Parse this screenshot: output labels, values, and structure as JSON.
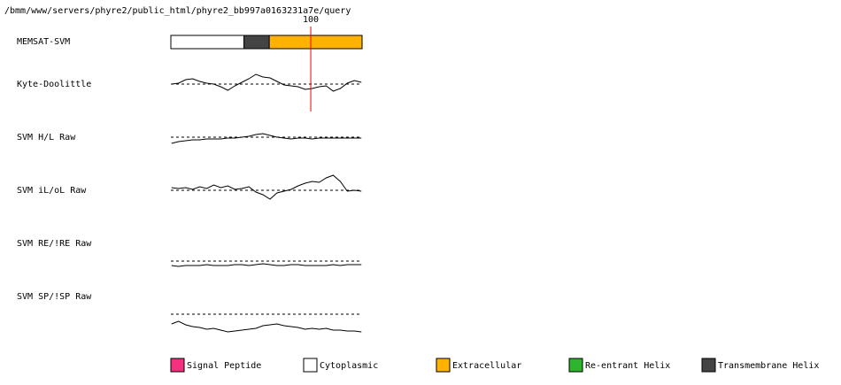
{
  "header": {
    "path": "/bmm/www/servers/phyre2/public_html/phyre2_bb997a0163231a7e/query"
  },
  "sequence": {
    "length": 136,
    "marker": 100
  },
  "memsat": {
    "label": "MEMSAT-SVM",
    "segments": [
      {
        "start": 1,
        "end": 52,
        "color": "#ffffff"
      },
      {
        "start": 53,
        "end": 70,
        "color": "#444444"
      },
      {
        "start": 71,
        "end": 136,
        "color": "#ffb300"
      }
    ]
  },
  "positions": [
    1,
    6,
    11,
    16,
    21,
    26,
    31,
    36,
    41,
    46,
    51,
    56,
    61,
    66,
    71,
    76,
    81,
    86,
    91,
    96,
    101,
    106,
    111,
    116,
    121,
    126,
    131,
    136
  ],
  "traces": [
    {
      "label": "Kyte-Doolittle",
      "values": [
        0,
        1,
        5,
        6,
        3,
        1,
        0,
        -3,
        -7,
        -2,
        2,
        6,
        11,
        8,
        7,
        3,
        -1,
        -2,
        -3,
        -6,
        -5,
        -3,
        -2,
        -8,
        -5,
        1,
        4,
        2
      ]
    },
    {
      "label": "SVM H/L Raw",
      "values": [
        -7,
        -5,
        -4,
        -3,
        -3,
        -2,
        -2,
        -2,
        -1,
        -1,
        0,
        1,
        3,
        4,
        2,
        0,
        -1,
        -2,
        -1,
        -1,
        -2,
        -1,
        -1,
        -1,
        -1,
        -1,
        -1,
        -1
      ]
    },
    {
      "label": "SVM iL/oL Raw",
      "values": [
        3,
        2,
        3,
        1,
        4,
        2,
        6,
        3,
        5,
        1,
        2,
        4,
        -2,
        -5,
        -10,
        -3,
        -1,
        1,
        5,
        8,
        10,
        9,
        14,
        17,
        10,
        -1,
        0,
        -1
      ]
    },
    {
      "label": "SVM RE/!RE Raw",
      "values": [
        -5,
        -6,
        -5,
        -5,
        -5,
        -4,
        -5,
        -5,
        -5,
        -4,
        -4,
        -5,
        -4,
        -3,
        -4,
        -5,
        -5,
        -4,
        -4,
        -5,
        -5,
        -5,
        -5,
        -4,
        -5,
        -4,
        -4,
        -4
      ]
    },
    {
      "label": "SVM SP/!SP Raw",
      "values": [
        -11,
        -8,
        -12,
        -14,
        -15,
        -17,
        -16,
        -18,
        -20,
        -19,
        -18,
        -17,
        -16,
        -13,
        -12,
        -11,
        -13,
        -14,
        -15,
        -17,
        -16,
        -17,
        -16,
        -18,
        -18,
        -19,
        -19,
        -20
      ]
    }
  ],
  "legend": [
    {
      "label": "Signal Peptide",
      "color": "#f5317f"
    },
    {
      "label": "Cytoplasmic",
      "color": "#ffffff"
    },
    {
      "label": "Extracellular",
      "color": "#ffb300"
    },
    {
      "label": "Re-entrant Helix",
      "color": "#2db52d"
    },
    {
      "label": "Transmembrane Helix",
      "color": "#444444"
    }
  ]
}
